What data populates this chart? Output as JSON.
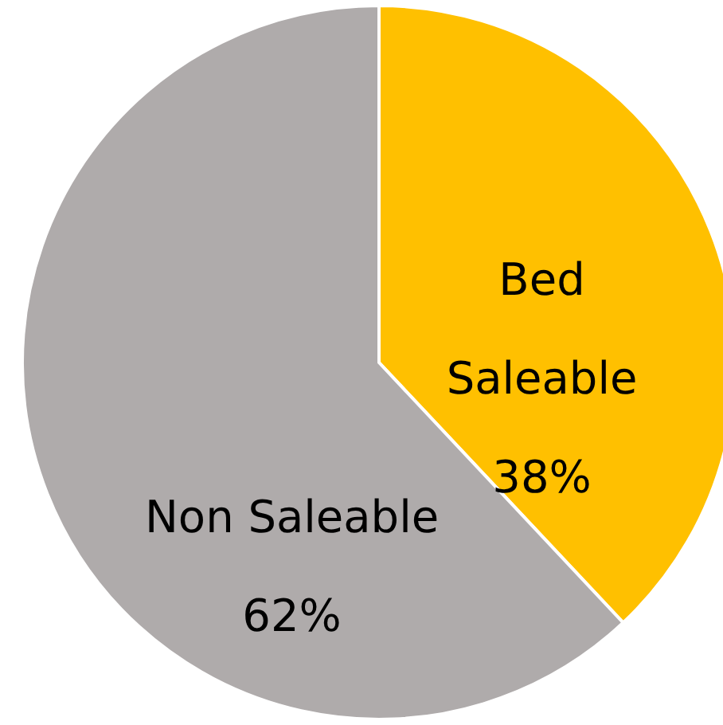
{
  "chart_data": {
    "type": "pie",
    "categories": [
      "Bed Saleable",
      "Non Saleable"
    ],
    "values": [
      38,
      62
    ],
    "value_labels": [
      "38%",
      "62%"
    ],
    "colors": [
      "#ffc000",
      "#afabab"
    ]
  }
}
